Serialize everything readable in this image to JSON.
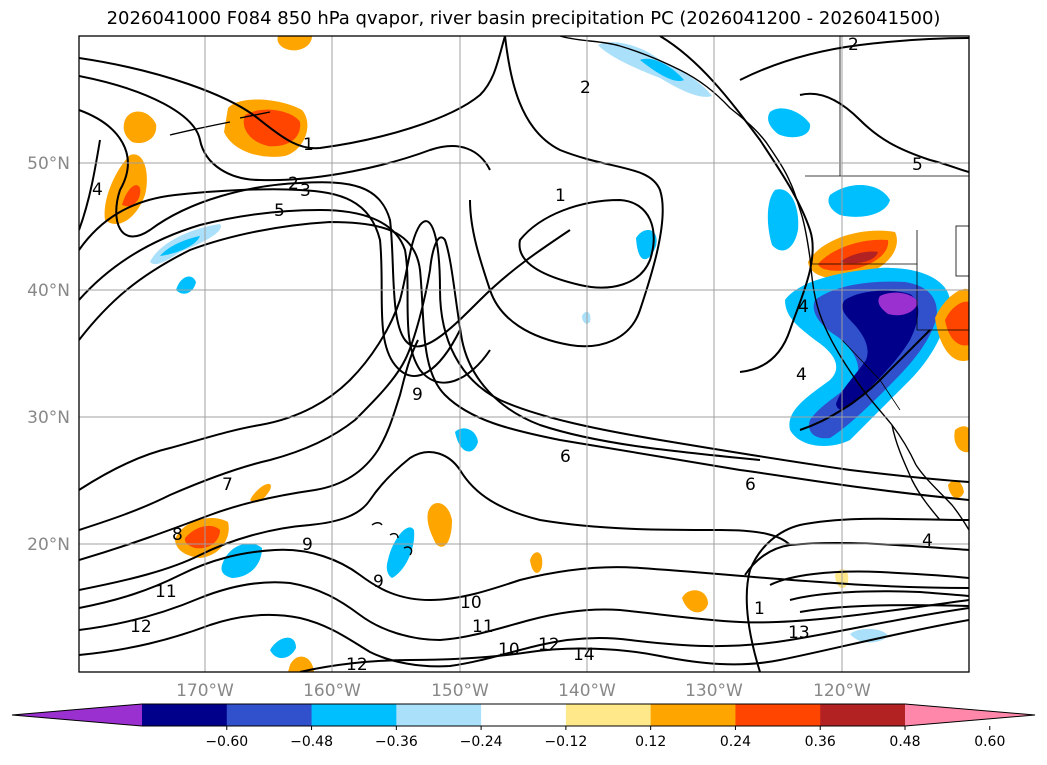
{
  "title": "2026041000 F084 850 hPa qvapor, river basin precipitation PC (2026041200 - 2026041500)",
  "lat_ticks": [
    "50°N",
    "40°N",
    "30°N",
    "20°N"
  ],
  "lon_ticks": [
    "170°W",
    "160°W",
    "150°W",
    "140°W",
    "130°W",
    "120°W"
  ],
  "colorbar": {
    "tick_labels": [
      "−0.60",
      "−0.48",
      "−0.36",
      "−0.24",
      "−0.12",
      "0.12",
      "0.24",
      "0.36",
      "0.48",
      "0.60"
    ],
    "colors": [
      "#9b30d0",
      "#00008b",
      "#3050cc",
      "#00bfff",
      "#aae0fa",
      "#ffffff",
      "#ffe88a",
      "#ffa500",
      "#ff4500",
      "#b22222",
      "#ff88aa"
    ],
    "extend": "both"
  },
  "contour_labels": [
    "1",
    "2",
    "2",
    "3",
    "5",
    "4",
    "1",
    "2",
    "5",
    "4",
    "4",
    "9",
    "6",
    "6",
    "7",
    "8",
    "9",
    "9",
    "11",
    "12",
    "10",
    "11",
    "10",
    "12",
    "14",
    "12",
    "13",
    "1",
    "4"
  ],
  "chart_data": {
    "type": "map",
    "field": "850 hPa qvapor contours with precipitation PC shading",
    "lon_range": [
      -180,
      -110
    ],
    "lat_range": [
      10,
      60
    ],
    "grid": true,
    "shading_levels": [
      -0.6,
      -0.48,
      -0.36,
      -0.24,
      -0.12,
      0.12,
      0.24,
      0.36,
      0.48,
      0.6
    ],
    "contour_values": [
      1,
      2,
      3,
      4,
      5,
      6,
      7,
      8,
      9,
      10,
      11,
      12,
      13,
      14
    ]
  }
}
